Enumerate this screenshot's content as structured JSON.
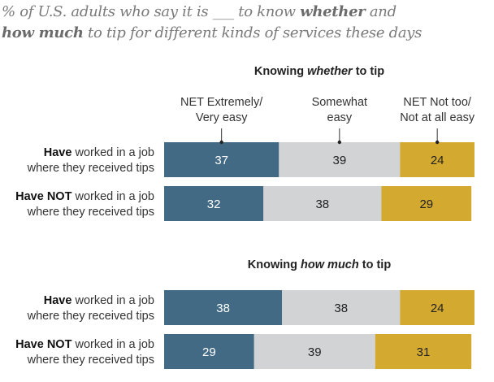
{
  "title": {
    "line1_pre": "% of U.S. adults who say it is ___ to know ",
    "line1_bold": "whether",
    "line1_post": " and",
    "line2_bold": "how much",
    "line2_post": " to tip for different kinds of services these days"
  },
  "colors": {
    "blue": "#436a85",
    "gray": "#d1d3d4",
    "gold": "#d4a92f",
    "text_light": "#ffffff",
    "text_dark": "#222222"
  },
  "chart_data": {
    "type": "bar",
    "orientation": "horizontal-stacked",
    "title": "% of U.S. adults who say it is ___ to know whether and how much to tip for different kinds of services these days",
    "legend": [
      {
        "name": "NET Extremely/ Very easy",
        "lines": [
          "NET Extremely/",
          "Very easy"
        ]
      },
      {
        "name": "Somewhat easy",
        "lines": [
          "Somewhat",
          "easy"
        ]
      },
      {
        "name": "NET Not too/ Not at all easy",
        "lines": [
          "NET Not too/",
          "Not at all easy"
        ]
      }
    ],
    "legend_placement": "top, above first panel",
    "xlim": [
      0,
      100
    ],
    "panels": [
      {
        "title_pre": "Knowing ",
        "title_em": "whether",
        "title_post": " to tip",
        "rows": [
          {
            "label_bold": "Have",
            "label_rest": " worked in a job",
            "label_line2": "where they received tips",
            "values": [
              37,
              39,
              24
            ]
          },
          {
            "label_bold": "Have NOT",
            "label_rest": " worked in a job",
            "label_line2": "where they received tips",
            "values": [
              32,
              38,
              29
            ]
          }
        ]
      },
      {
        "title_pre": "Knowing ",
        "title_em": "how much",
        "title_post": " to tip",
        "rows": [
          {
            "label_bold": "Have",
            "label_rest": " worked in a job",
            "label_line2": "where they received tips",
            "values": [
              38,
              38,
              24
            ]
          },
          {
            "label_bold": "Have NOT",
            "label_rest": " worked in a job",
            "label_line2": "where they received tips",
            "values": [
              29,
              39,
              31
            ]
          }
        ]
      }
    ]
  }
}
